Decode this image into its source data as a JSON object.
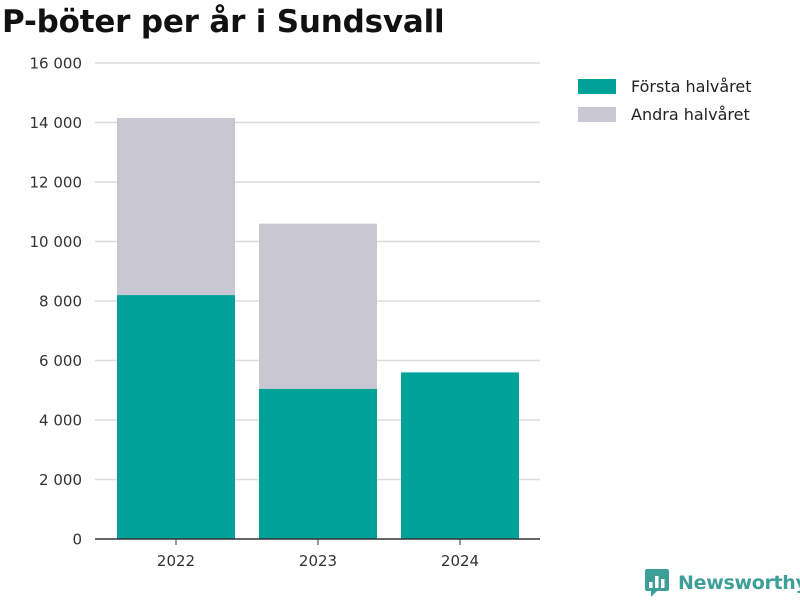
{
  "colors": {
    "first_half": "#00a197",
    "second_half": "#c9c8d2",
    "grid": "#dcdcdc",
    "axis": "#333333",
    "brand": "#3d9f97"
  },
  "brand": {
    "name": "Newsworthy",
    "icon": "bar-chart-speech-bubble-icon"
  },
  "chart_data": {
    "type": "bar",
    "stacked": true,
    "title": "P-böter per år i Sundsvall",
    "xlabel": "",
    "ylabel": "",
    "categories": [
      "2022",
      "2023",
      "2024"
    ],
    "series": [
      {
        "name": "Första halvåret",
        "color": "#00a197",
        "values": [
          8200,
          5050,
          5600
        ]
      },
      {
        "name": "Andra halvåret",
        "color": "#c9c8d2",
        "values": [
          5950,
          5550,
          0
        ]
      }
    ],
    "ylim": [
      0,
      16000
    ],
    "yticks": [
      0,
      2000,
      4000,
      6000,
      8000,
      10000,
      12000,
      14000,
      16000
    ],
    "ytick_labels": [
      "0",
      "2 000",
      "4 000",
      "6 000",
      "8 000",
      "10 000",
      "12 000",
      "14 000",
      "16 000"
    ],
    "grid": true,
    "legend_position": "top-right"
  }
}
